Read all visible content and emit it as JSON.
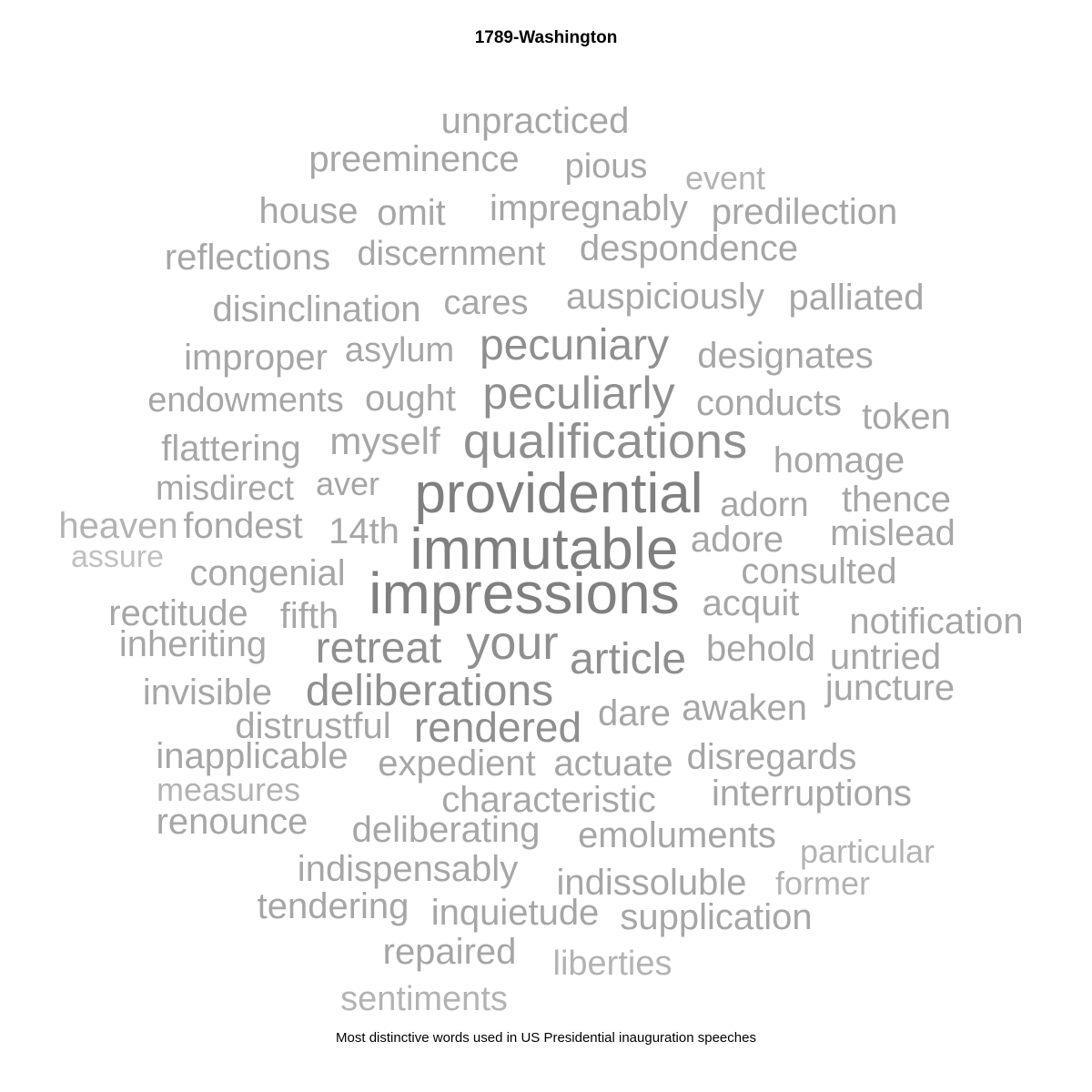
{
  "title": "1789-Washington",
  "caption": "Most distinctive words used in US Presidential inauguration speeches",
  "colors": {
    "tier1": "#7f7f7f",
    "tier2": "#8f8f8f",
    "tier3": "#a6a6a6",
    "tier4": "#b3b3b3",
    "tier5": "#c0c0c0"
  },
  "words": [
    "unpracticed",
    "preeminence",
    "pious",
    "event",
    "house",
    "omit",
    "impregnably",
    "predilection",
    "reflections",
    "discernment",
    "despondence",
    "disinclination",
    "cares",
    "auspiciously",
    "palliated",
    "improper",
    "asylum",
    "pecuniary",
    "designates",
    "endowments",
    "ought",
    "peculiarly",
    "conducts",
    "token",
    "flattering",
    "myself",
    "qualifications",
    "homage",
    "misdirect",
    "aver",
    "providential",
    "adorn",
    "thence",
    "heaven",
    "fondest",
    "14th",
    "immutable",
    "adore",
    "mislead",
    "assure",
    "congenial",
    "impressions",
    "consulted",
    "rectitude",
    "fifth",
    "acquit",
    "notification",
    "inheriting",
    "retreat",
    "your",
    "article",
    "behold",
    "untried",
    "invisible",
    "deliberations",
    "juncture",
    "distrustful",
    "rendered",
    "dare",
    "awaken",
    "inapplicable",
    "expedient",
    "actuate",
    "disregards",
    "measures",
    "characteristic",
    "interruptions",
    "renounce",
    "deliberating",
    "emoluments",
    "particular",
    "indispensably",
    "indissoluble",
    "former",
    "tendering",
    "inquietude",
    "supplication",
    "repaired",
    "liberties",
    "sentiments"
  ]
}
